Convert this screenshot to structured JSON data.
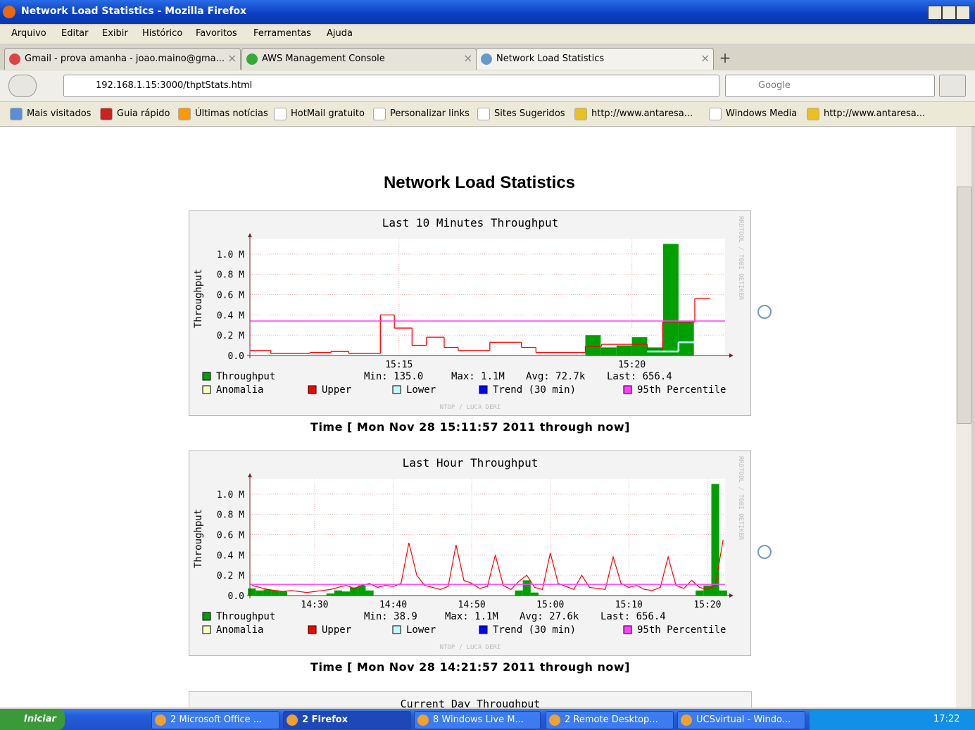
{
  "window": {
    "title": "Network Load Statistics - Mozilla Firefox"
  },
  "menu": [
    "Arquivo",
    "Editar",
    "Exibir",
    "Histórico",
    "Favoritos",
    "Ferramentas",
    "Ajuda"
  ],
  "tabs": [
    "Gmail - prova amanha - joao.maino@gma...",
    "AWS Management Console",
    "Network Load Statistics"
  ],
  "url": "192.168.1.15:3000/thptStats.html",
  "search": "Google",
  "bookmarks": [
    "Mais visitados",
    "Guia rápido",
    "Últimas notícias",
    "HotMail gratuito",
    "Personalizar links",
    "Sites Sugeridos",
    "http://www.antaresa...",
    "Windows Media",
    "http://www.antaresa..."
  ],
  "page": {
    "heading": "Network Load Statistics",
    "next_graph_title": "Current Day Throughput"
  },
  "graphs": [
    {
      "type": "step",
      "title": "Last 10 Minutes Throughput",
      "ylabel": "Throughput",
      "watermark": "RRDTOOL / TOBI OETIKER",
      "credit": "NTOP / LUCA DERI",
      "caption": "Time [ Mon Nov 28 15:11:57 2011 through now]",
      "xlim": [
        11.8,
        22.0
      ],
      "xticks": [
        {
          "value": 15,
          "label": "15:15"
        },
        {
          "value": 20,
          "label": "15:20"
        }
      ],
      "ylim": [
        0,
        1110000
      ],
      "yticks": [
        {
          "value": 0,
          "label": "0.0"
        },
        {
          "value": 200000,
          "label": "0.2 M"
        },
        {
          "value": 400000,
          "label": "0.4 M"
        },
        {
          "value": 600000,
          "label": "0.6 M"
        },
        {
          "value": 800000,
          "label": "0.8 M"
        },
        {
          "value": 1000000,
          "label": "1.0 M"
        }
      ],
      "series": [
        {
          "name": "Throughput",
          "color": "#00a000",
          "edges": [
            19.0,
            19.33,
            19.67,
            20.0,
            20.33,
            20.67,
            21.0,
            21.33
          ],
          "values": [
            200000,
            80000,
            100000,
            180000,
            80000,
            1100000,
            330000
          ]
        },
        {
          "name": "Anomalia",
          "color": "#ffffc0"
        },
        {
          "name": "Upper",
          "color": "#ff0000",
          "edges": [
            11.8,
            12.25,
            13.09,
            13.54,
            13.92,
            14.6,
            14.9,
            15.28,
            15.59,
            15.97,
            16.27,
            16.95,
            17.63,
            17.94,
            19.0,
            19.35,
            20.33,
            20.66,
            21.35,
            21.68
          ],
          "values": [
            50000,
            20000,
            30000,
            40000,
            20000,
            400000,
            270000,
            100000,
            180000,
            80000,
            50000,
            130000,
            80000,
            30000,
            90000,
            110000,
            60000,
            330000,
            560000
          ]
        },
        {
          "name": "Lower",
          "color": "#c0ffff",
          "edges": [
            20.33,
            21.0,
            21.35
          ],
          "values": [
            40000,
            130000
          ]
        },
        {
          "name": "Trend (30 min)",
          "color": "#0000ff"
        },
        {
          "name": "95th Percentile",
          "color": "#ff40ff",
          "value": 340000
        }
      ],
      "stats": [
        "Min: 135.0",
        "Max: 1.1M",
        "Avg: 72.7k",
        "Last: 656.4"
      ]
    },
    {
      "type": "line",
      "title": "Last Hour Throughput",
      "ylabel": "Throughput",
      "watermark": "RRDTOOL / TOBI OETIKER",
      "credit": "NTOP / LUCA DERI",
      "caption": "Time [ Mon Nov 28 14:21:57 2011 through now]",
      "xlim": [
        21.76,
        82.25
      ],
      "xticks": [
        {
          "value": 30,
          "label": "14:30"
        },
        {
          "value": 40,
          "label": "14:40"
        },
        {
          "value": 50,
          "label": "14:50"
        },
        {
          "value": 60,
          "label": "15:00"
        },
        {
          "value": 70,
          "label": "15:10"
        },
        {
          "value": 80,
          "label": "15:20"
        }
      ],
      "ylim": [
        0,
        1110000
      ],
      "yticks": [
        {
          "value": 0,
          "label": "0.0"
        },
        {
          "value": 200000,
          "label": "0.2 M"
        },
        {
          "value": 400000,
          "label": "0.4 M"
        },
        {
          "value": 600000,
          "label": "0.6 M"
        },
        {
          "value": 800000,
          "label": "0.8 M"
        },
        {
          "value": 1000000,
          "label": "1.0 M"
        }
      ],
      "x": [
        22,
        23,
        24,
        25,
        26,
        27,
        28,
        29,
        30,
        31,
        32,
        33,
        34,
        35,
        36,
        37,
        38,
        39,
        40,
        41,
        42,
        43,
        44,
        45,
        46,
        47,
        48,
        49,
        50,
        51,
        52,
        53,
        54,
        55,
        56,
        57,
        58,
        59,
        60,
        61,
        62,
        63,
        64,
        65,
        66,
        67,
        68,
        69,
        70,
        71,
        72,
        73,
        74,
        75,
        76,
        77,
        78,
        79,
        80,
        81,
        82
      ],
      "series": [
        {
          "name": "Throughput",
          "color": "#00a000",
          "values": [
            70000,
            50000,
            60000,
            50000,
            40000,
            0,
            0,
            0,
            0,
            0,
            20000,
            50000,
            40000,
            80000,
            100000,
            50000,
            0,
            0,
            0,
            0,
            0,
            0,
            0,
            0,
            0,
            0,
            0,
            0,
            0,
            0,
            0,
            0,
            0,
            0,
            50000,
            150000,
            30000,
            0,
            0,
            0,
            0,
            0,
            0,
            0,
            0,
            0,
            0,
            0,
            0,
            0,
            0,
            0,
            0,
            0,
            0,
            0,
            0,
            50000,
            100000,
            1100000,
            50000
          ]
        },
        {
          "name": "Anomalia",
          "color": "#ffffc0"
        },
        {
          "name": "Upper",
          "color": "#ff0000",
          "values": [
            100000,
            80000,
            60000,
            50000,
            40000,
            50000,
            40000,
            30000,
            40000,
            50000,
            60000,
            80000,
            100000,
            70000,
            100000,
            120000,
            80000,
            100000,
            90000,
            120000,
            520000,
            200000,
            100000,
            80000,
            60000,
            90000,
            500000,
            150000,
            120000,
            70000,
            90000,
            400000,
            100000,
            60000,
            140000,
            200000,
            80000,
            60000,
            420000,
            120000,
            90000,
            60000,
            200000,
            80000,
            70000,
            60000,
            380000,
            120000,
            80000,
            100000,
            60000,
            50000,
            80000,
            380000,
            100000,
            70000,
            150000,
            80000,
            60000,
            100000,
            550000
          ]
        },
        {
          "name": "Lower",
          "color": "#c0ffff"
        },
        {
          "name": "Trend (30 min)",
          "color": "#0000ff"
        },
        {
          "name": "95th Percentile",
          "color": "#ff40ff",
          "value": 110000
        }
      ],
      "stats": [
        "Min: 38.9",
        "Max: 1.1M",
        "Avg: 27.6k",
        "Last: 656.4"
      ]
    }
  ],
  "taskbar": {
    "start": "Iniciar",
    "items": [
      "2 Microsoft Office ...",
      "2 Firefox",
      "8 Windows Live M...",
      "2 Remote Desktop...",
      "UCSvirtual - Windo..."
    ],
    "clock": "17:22"
  }
}
